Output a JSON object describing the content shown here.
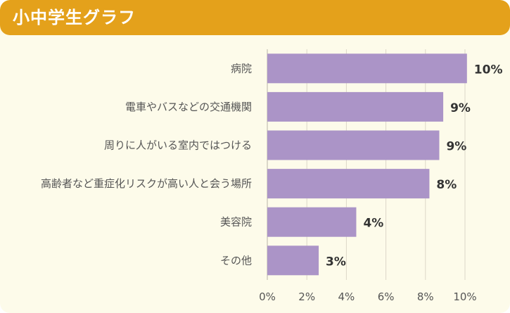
{
  "header": {
    "title": "小中学生グラフ"
  },
  "colors": {
    "header_bg": "#e4a11b",
    "card_bg": "#fdfbea",
    "bar": "#ab94c7",
    "grid": "#dcd7c8"
  },
  "chart_data": {
    "type": "bar",
    "orientation": "horizontal",
    "title": "小中学生グラフ",
    "categories": [
      "病院",
      "電車やバスなどの交通機関",
      "周りに人がいる室内ではつける",
      "高齢者など重症化リスクが高い人と会う場所",
      "美容院",
      "その他"
    ],
    "values": [
      10.1,
      8.9,
      8.7,
      8.2,
      4.5,
      2.6
    ],
    "value_labels": [
      "10%",
      "9%",
      "9%",
      "8%",
      "4%",
      "3%"
    ],
    "xlim": [
      0,
      10
    ],
    "xticks": [
      0,
      2,
      4,
      6,
      8,
      10
    ],
    "xtick_labels": [
      "0%",
      "2%",
      "4%",
      "6%",
      "8%",
      "10%"
    ],
    "xlabel": "",
    "ylabel": "",
    "grid": true,
    "legend": "none"
  }
}
